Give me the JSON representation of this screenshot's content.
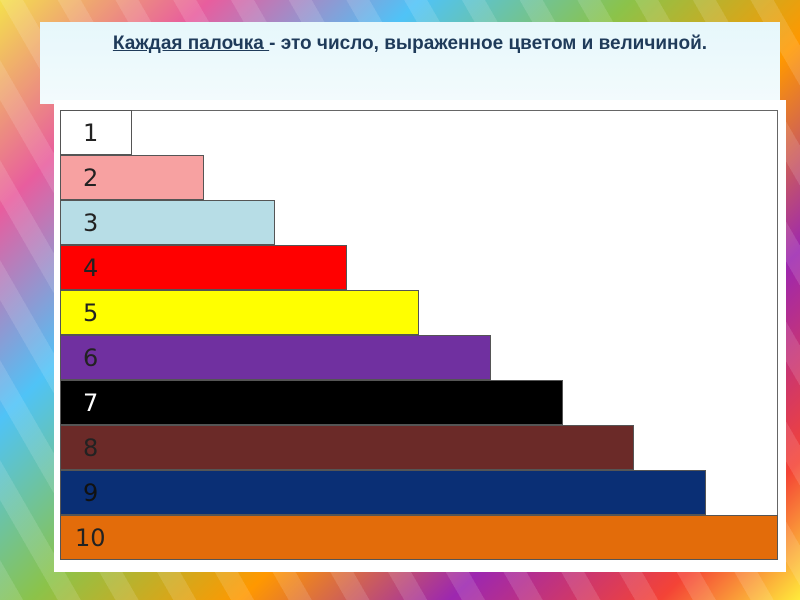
{
  "title": {
    "underlined": "Каждая палочка ",
    "rest": "- это число, выраженное цветом и величиной."
  },
  "rods": [
    {
      "label": "1",
      "value": 1,
      "color": "#ffffff",
      "text_color": "#222222"
    },
    {
      "label": "2",
      "value": 2,
      "color": "#f7a1a1",
      "text_color": "#222222"
    },
    {
      "label": "3",
      "value": 3,
      "color": "#b7dde6",
      "text_color": "#222222"
    },
    {
      "label": "4",
      "value": 4,
      "color": "#ff0000",
      "text_color": "#222222"
    },
    {
      "label": "5",
      "value": 5,
      "color": "#ffff00",
      "text_color": "#222222"
    },
    {
      "label": "6",
      "value": 6,
      "color": "#7030a0",
      "text_color": "#222222"
    },
    {
      "label": "7",
      "value": 7,
      "color": "#000000",
      "text_color": "#ffffff"
    },
    {
      "label": "8",
      "value": 8,
      "color": "#6b2a28",
      "text_color": "#222222"
    },
    {
      "label": "9",
      "value": 9,
      "color": "#0a2f75",
      "text_color": "#111111"
    },
    {
      "label": "10",
      "value": 10,
      "color": "#e36c0a",
      "text_color": "#222222"
    }
  ]
}
